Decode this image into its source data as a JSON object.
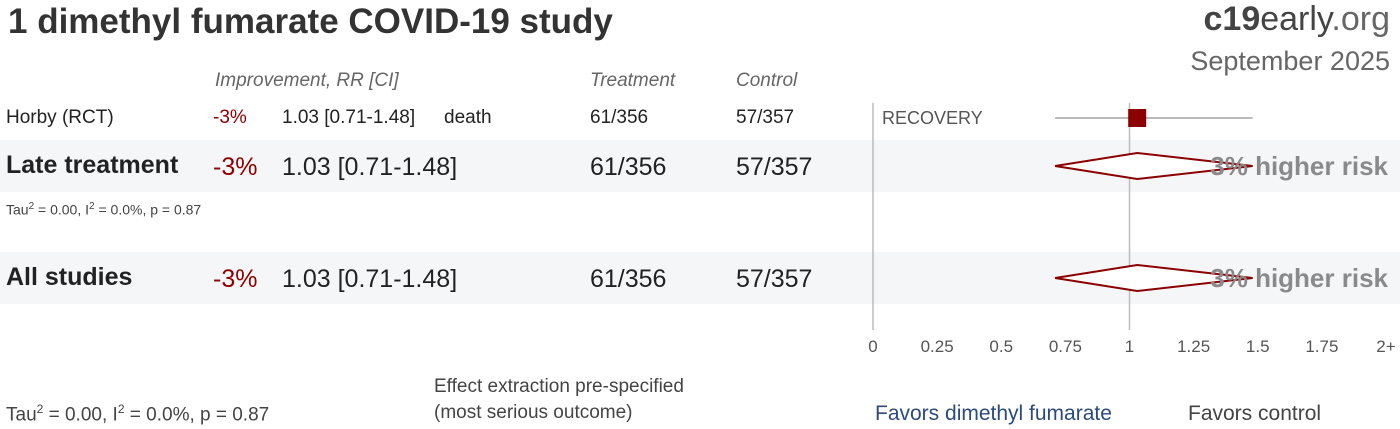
{
  "title": "1 dimethyl fumarate COVID-19 study",
  "brand": {
    "bold": "c19",
    "normal": "early",
    "light": ".org"
  },
  "date": "September 2025",
  "columns": {
    "improvement": "Improvement, RR [CI]",
    "treatment": "Treatment",
    "control": "Control"
  },
  "study": {
    "name": "Horby (RCT)",
    "improvement": "-3%",
    "rr": "1.03 [0.71-1.48]",
    "outcome": "death",
    "treatment": "61/356",
    "control": "57/357",
    "trial": "RECOVERY"
  },
  "late": {
    "name": "Late treatment",
    "improvement": "-3%",
    "rr": "1.03 [0.71-1.48]",
    "treatment": "61/356",
    "control": "57/357",
    "risk": "3% higher risk",
    "het": {
      "tau_prefix": "Tau",
      "tau_sup": "2",
      "i_part": " = 0.00, I",
      "i_sup": "2",
      "rest": " = 0.0%, p = 0.87"
    }
  },
  "all": {
    "name": "All studies",
    "improvement": "-3%",
    "rr": "1.03 [0.71-1.48]",
    "treatment": "61/356",
    "control": "57/357",
    "risk": "3% higher risk"
  },
  "footer": {
    "het": {
      "tau_prefix": "Tau",
      "tau_sup": "2",
      "i_part": " = 0.00, I",
      "i_sup": "2",
      "rest": " = 0.0%, p = 0.87"
    },
    "note1": "Effect extraction pre-specified",
    "note2": "(most serious outcome)",
    "favors_left": "Favors dimethyl fumarate",
    "favors_right": "Favors control"
  },
  "chart_data": {
    "type": "forest",
    "xlim": [
      0,
      2
    ],
    "ticks": [
      "0",
      "0.25",
      "0.5",
      "0.75",
      "1",
      "1.25",
      "1.5",
      "1.75",
      "2+"
    ],
    "tick_values": [
      0,
      0.25,
      0.5,
      0.75,
      1,
      1.25,
      1.5,
      1.75,
      2
    ],
    "reference": 1,
    "rows": [
      {
        "name": "Horby (RCT)",
        "kind": "study",
        "rr": 1.03,
        "low": 0.71,
        "high": 1.48
      },
      {
        "name": "Late treatment",
        "kind": "summary",
        "rr": 1.03,
        "low": 0.71,
        "high": 1.48
      },
      {
        "name": "All studies",
        "kind": "summary",
        "rr": 1.03,
        "low": 0.71,
        "high": 1.48
      }
    ],
    "colors": {
      "marker": "#8b0000",
      "ci": "#bbbbbb",
      "axis": "#bbbbbb"
    }
  }
}
